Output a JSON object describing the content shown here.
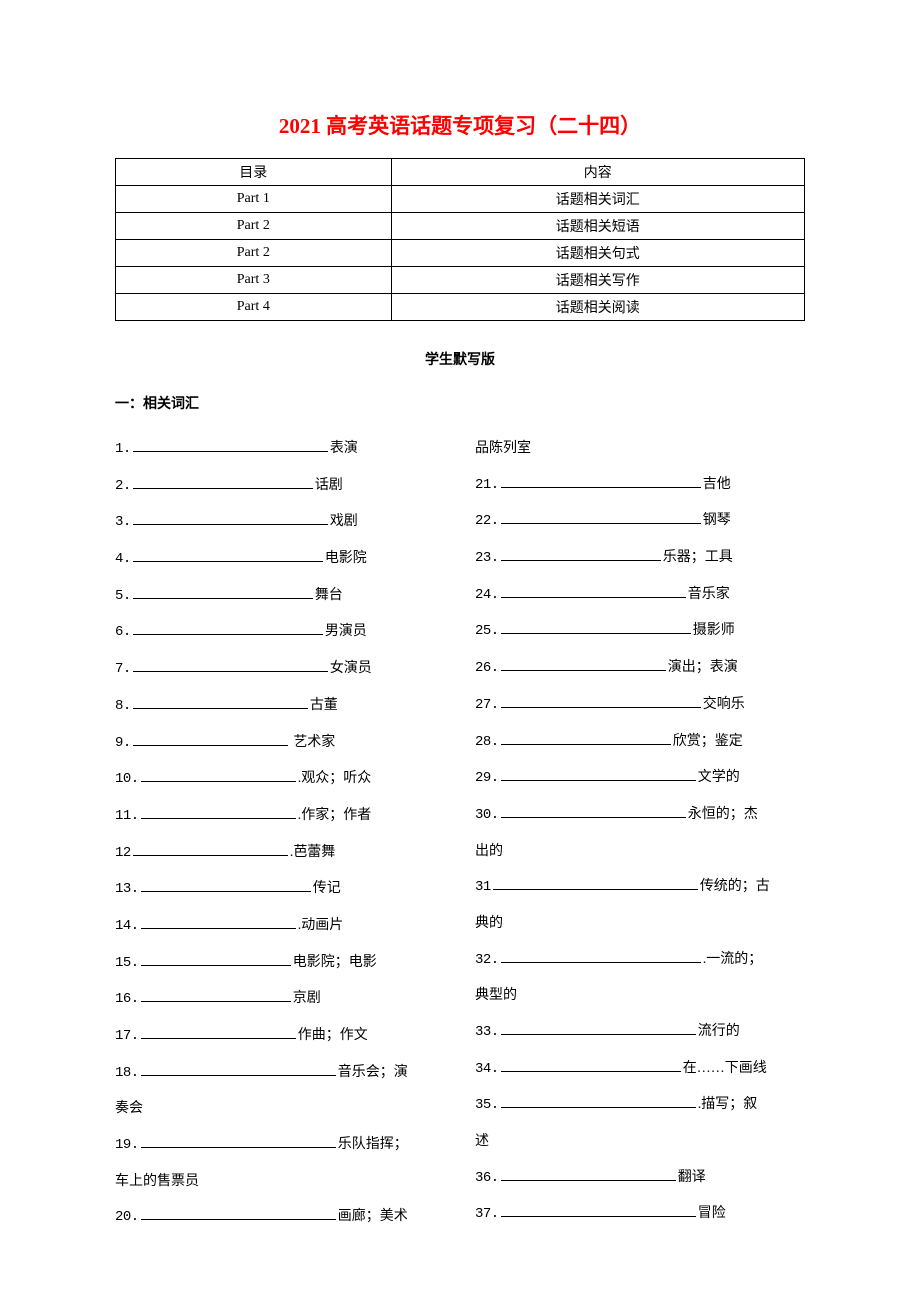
{
  "title": "2021 高考英语话题专项复习（二十四）",
  "toc": {
    "header": {
      "left": "目录",
      "right": "内容"
    },
    "rows": [
      {
        "left": "Part  1",
        "right": "话题相关词汇"
      },
      {
        "left": "Part  2",
        "right": "话题相关短语"
      },
      {
        "left": "Part  2",
        "right": "话题相关句式"
      },
      {
        "left": "Part  3",
        "right": "话题相关写作"
      },
      {
        "left": "Part  4",
        "right": "话题相关阅读"
      }
    ]
  },
  "subtitle": "学生默写版",
  "section_heading": "一：相关词汇",
  "left_column": [
    {
      "num": "1.",
      "blank_width": 195,
      "label": "表演",
      "wrap": ""
    },
    {
      "num": "2.",
      "blank_width": 180,
      "label": "话剧",
      "wrap": ""
    },
    {
      "num": "3.",
      "blank_width": 195,
      "label": "戏剧",
      "wrap": ""
    },
    {
      "num": "4.",
      "blank_width": 190,
      "label": "电影院",
      "wrap": ""
    },
    {
      "num": "5.",
      "blank_width": 180,
      "label": "舞台",
      "wrap": ""
    },
    {
      "num": "6.",
      "blank_width": 190,
      "label": "男演员",
      "wrap": ""
    },
    {
      "num": "7.",
      "blank_width": 195,
      "label": "女演员",
      "wrap": ""
    },
    {
      "num": "8.",
      "blank_width": 175,
      "label": "古董",
      "wrap": ""
    },
    {
      "num": "9.",
      "blank_width": 155,
      "label": " 艺术家",
      "wrap": ""
    },
    {
      "num": "10.",
      "blank_width": 155,
      "label": ".观众；听众",
      "wrap": ""
    },
    {
      "num": "11.",
      "blank_width": 155,
      "label": ".作家；作者",
      "wrap": ""
    },
    {
      "num": "12",
      "blank_width": 155,
      "label": ".芭蕾舞",
      "wrap": ""
    },
    {
      "num": "13.",
      "blank_width": 170,
      "label": "传记",
      "wrap": ""
    },
    {
      "num": "14.",
      "blank_width": 155,
      "label": ".动画片",
      "wrap": ""
    },
    {
      "num": "15.",
      "blank_width": 150,
      "label": "电影院；电影",
      "wrap": ""
    },
    {
      "num": "16.",
      "blank_width": 150,
      "label": "京剧",
      "wrap": ""
    },
    {
      "num": "17.",
      "blank_width": 155,
      "label": "作曲；作文",
      "wrap": ""
    },
    {
      "num": "18.",
      "blank_width": 195,
      "label": "音乐会；演",
      "wrap": "奏会"
    },
    {
      "num": "19.",
      "blank_width": 195,
      "label": "乐队指挥；",
      "wrap": "车上的售票员"
    },
    {
      "num": "20.",
      "blank_width": 195,
      "label": "画廊；美术",
      "wrap": ""
    }
  ],
  "right_column_prefix": "品陈列室",
  "right_column": [
    {
      "num": "21.",
      "blank_width": 200,
      "label": "吉他",
      "wrap": ""
    },
    {
      "num": "22.",
      "blank_width": 200,
      "label": "钢琴",
      "wrap": ""
    },
    {
      "num": "23.",
      "blank_width": 160,
      "label": "乐器；工具",
      "wrap": ""
    },
    {
      "num": "24.",
      "blank_width": 185,
      "label": "音乐家",
      "wrap": ""
    },
    {
      "num": "25.",
      "blank_width": 190,
      "label": "摄影师",
      "wrap": ""
    },
    {
      "num": "26.",
      "blank_width": 165,
      "label": "演出；表演",
      "wrap": ""
    },
    {
      "num": "27.",
      "blank_width": 200,
      "label": "交响乐",
      "wrap": ""
    },
    {
      "num": "28.",
      "blank_width": 170,
      "label": "欣赏；鉴定",
      "wrap": ""
    },
    {
      "num": "29.",
      "blank_width": 195,
      "label": "文学的",
      "wrap": ""
    },
    {
      "num": "30.",
      "blank_width": 185,
      "label": "永恒的；杰",
      "wrap": "出的"
    },
    {
      "num": "31",
      "blank_width": 205,
      "label": "传统的；古",
      "wrap": "典的"
    },
    {
      "num": "32.",
      "blank_width": 200,
      "label": ".一流的；",
      "wrap": "典型的"
    },
    {
      "num": "33.",
      "blank_width": 195,
      "label": "流行的",
      "wrap": ""
    },
    {
      "num": "34.",
      "blank_width": 180,
      "label": "在……下画线",
      "wrap": ""
    },
    {
      "num": "35.",
      "blank_width": 195,
      "label": ".描写；叙",
      "wrap": "述"
    },
    {
      "num": "36.",
      "blank_width": 175,
      "label": "翻译",
      "wrap": ""
    },
    {
      "num": "37.",
      "blank_width": 195,
      "label": "冒险",
      "wrap": ""
    }
  ],
  "colors": {
    "title_color": "#ff0000",
    "text_color": "#000000",
    "background": "#ffffff",
    "border_color": "#000000"
  }
}
